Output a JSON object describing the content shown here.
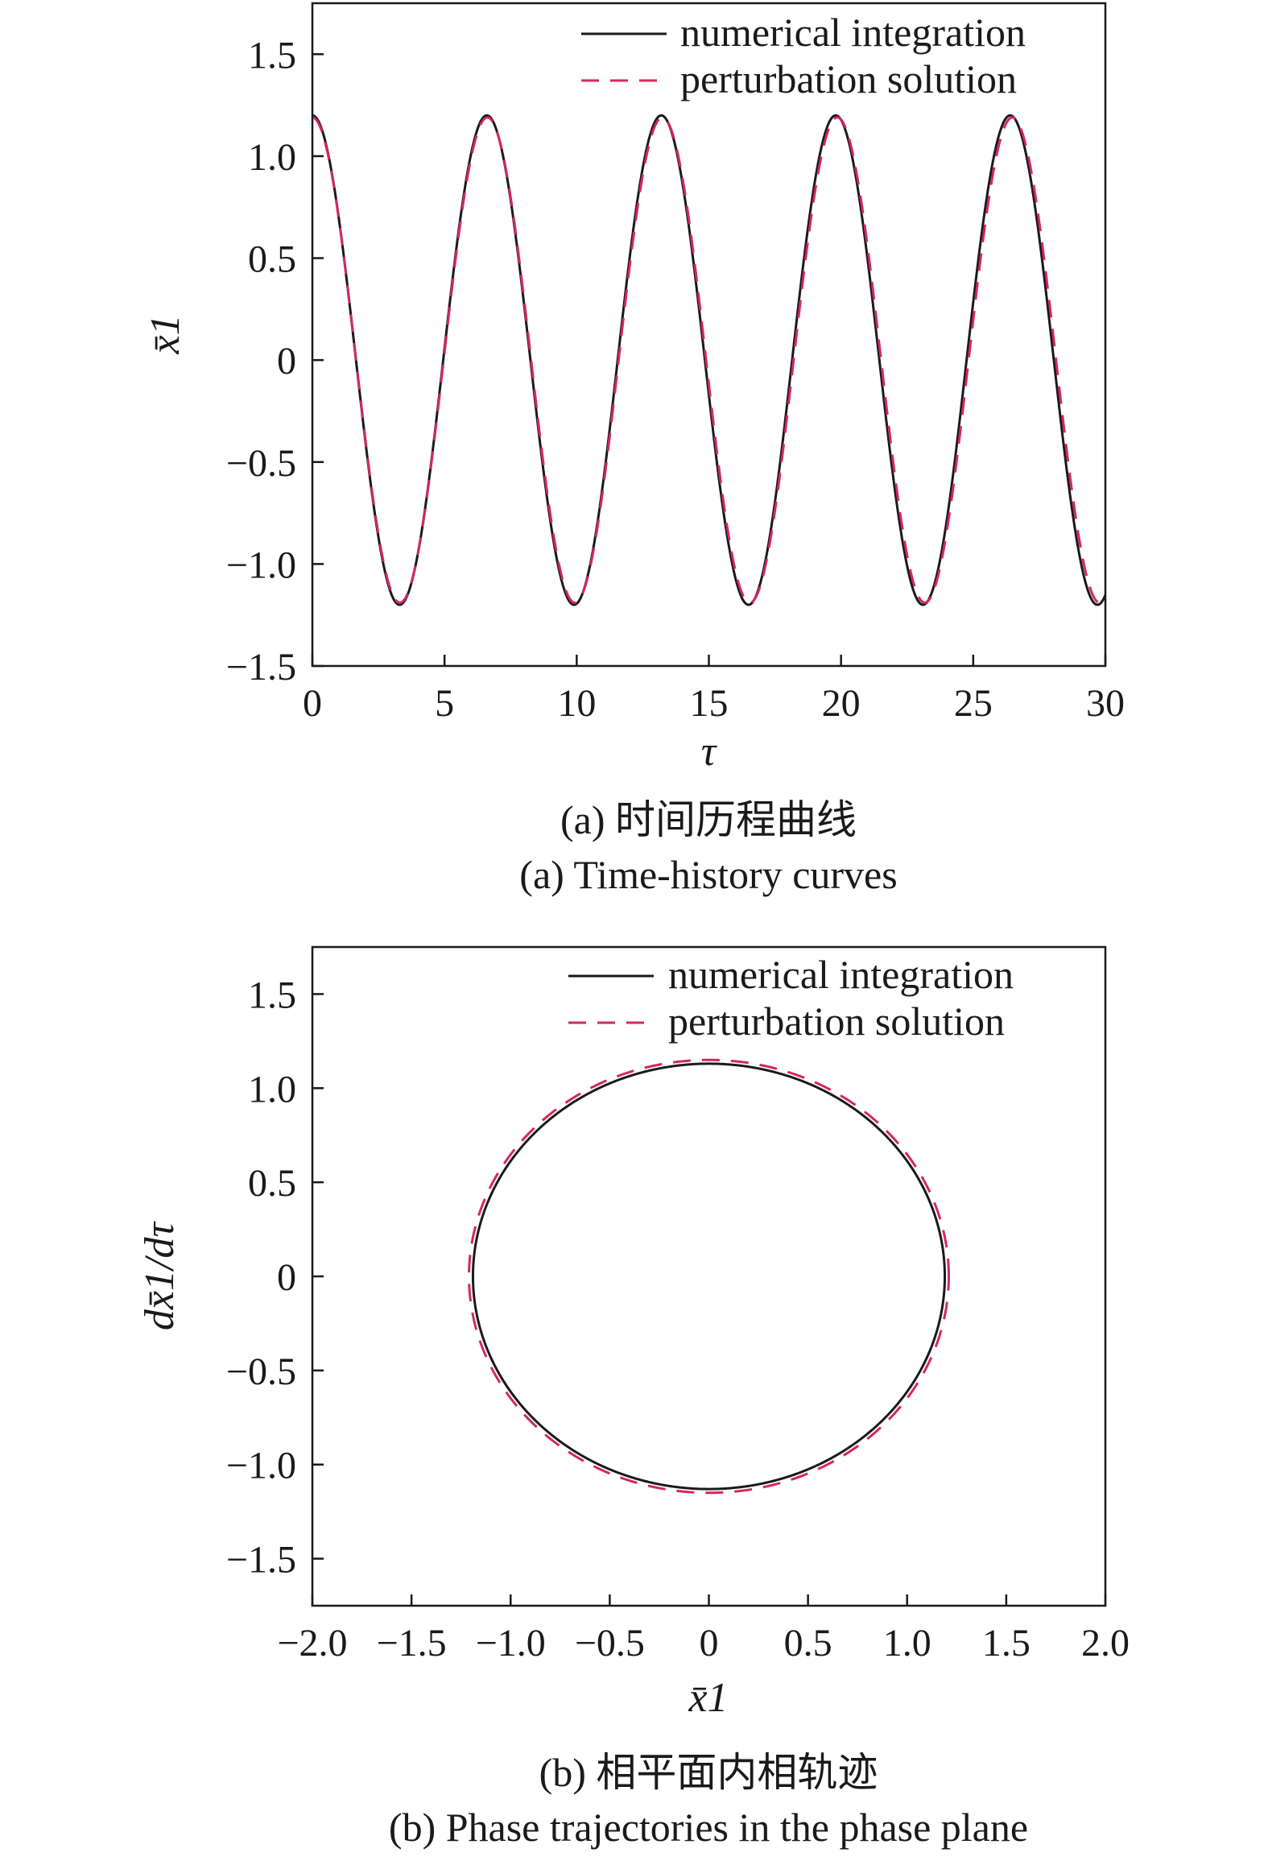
{
  "colors": {
    "numerical": "#1a1a1a",
    "perturbation": "#d6285a",
    "axis": "#1a1a1a"
  },
  "legend": [
    "numerical integration",
    "perturbation solution"
  ],
  "chart_data": [
    {
      "type": "line",
      "xlabel": "τ",
      "ylabel": "x̄1",
      "xlim": [
        0,
        30
      ],
      "ylim": [
        -1.5,
        1.75
      ],
      "xticks": [
        0,
        5,
        10,
        15,
        20,
        25,
        30
      ],
      "xtick_labels": [
        "0",
        "5",
        "10",
        "15",
        "20",
        "25",
        "30"
      ],
      "yticks": [
        -1.5,
        -1.0,
        -0.5,
        0,
        0.5,
        1.0,
        1.5
      ],
      "ytick_labels": [
        "−1.5",
        "−1.0",
        "−0.5",
        "0",
        "0.5",
        "1.0",
        "1.5"
      ],
      "grid": false,
      "legend_position": "top-right",
      "caption_cn": "(a) 时间历程曲线",
      "caption_en": "(a) Time-history curves",
      "series": [
        {
          "name": "numerical integration",
          "style": "solid",
          "model": "cosine",
          "amplitude": 1.2,
          "period": 6.6,
          "phase": 0
        },
        {
          "name": "perturbation solution",
          "style": "dashed",
          "model": "cosine",
          "amplitude": 1.19,
          "period": 6.62,
          "phase": 0
        }
      ]
    },
    {
      "type": "line",
      "xlabel": "x̄1",
      "ylabel": "dx̄1/dτ",
      "xlim": [
        -2.0,
        2.0
      ],
      "ylim": [
        -1.75,
        1.75
      ],
      "xticks": [
        -2.0,
        -1.5,
        -1.0,
        -0.5,
        0,
        0.5,
        1.0,
        1.5,
        2.0
      ],
      "xtick_labels": [
        "−2.0",
        "−1.5",
        "−1.0",
        "−0.5",
        "0",
        "0.5",
        "1.0",
        "1.5",
        "2.0"
      ],
      "yticks": [
        -1.5,
        -1.0,
        -0.5,
        0,
        0.5,
        1.0,
        1.5
      ],
      "ytick_labels": [
        "−1.5",
        "−1.0",
        "−0.5",
        "0",
        "0.5",
        "1.0",
        "1.5"
      ],
      "grid": false,
      "legend_position": "top-right",
      "caption_cn": "(b) 相平面内相轨迹",
      "caption_en": "(b) Phase trajectories in the phase plane",
      "series": [
        {
          "name": "numerical integration",
          "style": "solid",
          "model": "ellipse",
          "x_amplitude": 1.19,
          "y_amplitude": 1.13
        },
        {
          "name": "perturbation solution",
          "style": "dashed",
          "model": "ellipse",
          "x_amplitude": 1.21,
          "y_amplitude": 1.15
        }
      ]
    }
  ]
}
